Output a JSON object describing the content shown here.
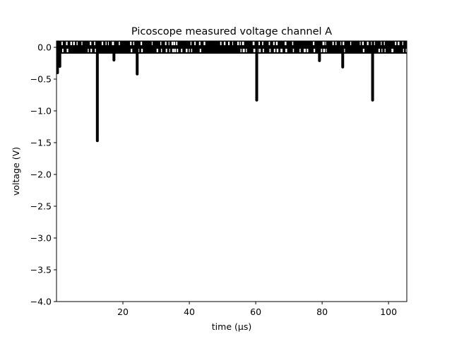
{
  "chart_data": {
    "type": "line",
    "title": "Picoscope measured voltage channel A",
    "xlabel": "time (µs)",
    "ylabel": "voltage (V)",
    "xlim": [
      0,
      105.5
    ],
    "ylim": [
      -4.0,
      0.1
    ],
    "x_ticks": [
      20,
      40,
      60,
      80,
      100
    ],
    "x_tick_labels": [
      "20",
      "40",
      "60",
      "80",
      "100"
    ],
    "y_ticks": [
      0.0,
      -0.5,
      -1.0,
      -1.5,
      -2.0,
      -2.5,
      -3.0,
      -3.5,
      -4.0
    ],
    "y_tick_labels": [
      "0.0",
      "−0.5",
      "−1.0",
      "−1.5",
      "−2.0",
      "−2.5",
      "−3.0",
      "−3.5",
      "−4.0"
    ],
    "grid": false,
    "legend": "none",
    "series_color": "#000000",
    "noise_band": {
      "x_range": [
        0,
        105.5
      ],
      "y_range": [
        -0.1,
        0.1
      ]
    },
    "spikes": [
      {
        "x": 0.3,
        "y": -0.4
      },
      {
        "x": 1.0,
        "y": -0.3
      },
      {
        "x": 12.3,
        "y": -1.47
      },
      {
        "x": 17.3,
        "y": -0.2
      },
      {
        "x": 24.3,
        "y": -0.42
      },
      {
        "x": 60.3,
        "y": -0.83
      },
      {
        "x": 79.2,
        "y": -0.21
      },
      {
        "x": 86.2,
        "y": -0.31
      },
      {
        "x": 95.2,
        "y": -0.83
      }
    ]
  }
}
